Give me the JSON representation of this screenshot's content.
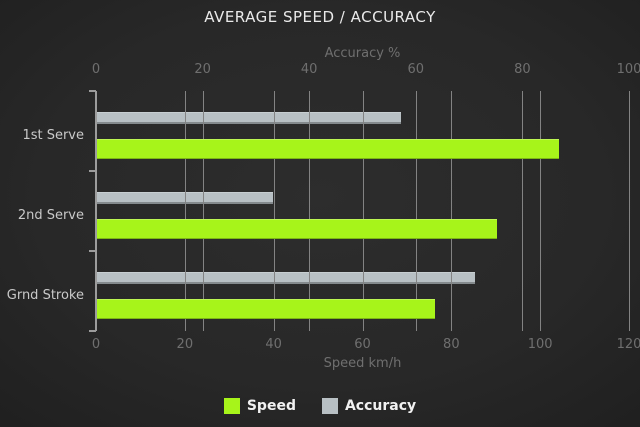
{
  "chart_data": {
    "type": "bar",
    "orientation": "horizontal",
    "title": "AVERAGE SPEED / ACCURACY",
    "categories": [
      "1st Serve",
      "2nd Serve",
      "Grnd Stroke"
    ],
    "series": [
      {
        "name": "Speed",
        "axis": "bottom",
        "unit": "km/h",
        "color": "#a7f41a",
        "values": [
          104,
          90,
          76
        ]
      },
      {
        "name": "Accuracy",
        "axis": "top",
        "unit": "%",
        "color": "#b8c0c4",
        "values": [
          57,
          33,
          71
        ]
      }
    ],
    "top_axis": {
      "label": "Accuracy %",
      "ticks": [
        0,
        20,
        40,
        60,
        80,
        100
      ],
      "range": [
        0,
        100
      ]
    },
    "bottom_axis": {
      "label": "Speed km/h",
      "ticks": [
        0,
        20,
        40,
        60,
        80,
        100,
        120
      ],
      "range": [
        0,
        120
      ]
    },
    "legend": {
      "position": "bottom",
      "items": [
        "Speed",
        "Accuracy"
      ]
    },
    "grid": true,
    "colors": {
      "background_center": "#2d2d2d",
      "background_edge": "#0f0f0f",
      "gridline": "#838383",
      "axis_text": "#6f6f6f",
      "category_text": "#c9c9c9",
      "title_text": "#eaeaea",
      "legend_text": "#f1f1f1"
    }
  }
}
